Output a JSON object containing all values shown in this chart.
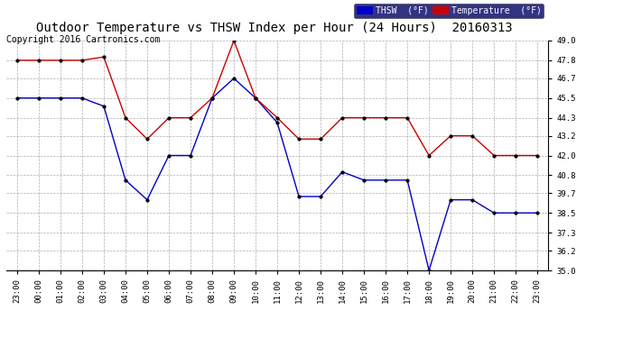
{
  "title": "Outdoor Temperature vs THSW Index per Hour (24 Hours)  20160313",
  "copyright": "Copyright 2016 Cartronics.com",
  "x_labels": [
    "23:00",
    "00:00",
    "01:00",
    "02:00",
    "03:00",
    "04:00",
    "05:00",
    "06:00",
    "07:00",
    "08:00",
    "09:00",
    "10:00",
    "11:00",
    "12:00",
    "13:00",
    "14:00",
    "15:00",
    "16:00",
    "17:00",
    "18:00",
    "19:00",
    "20:00",
    "21:00",
    "22:00",
    "23:00"
  ],
  "thsw_values": [
    45.5,
    45.5,
    45.5,
    45.5,
    45.0,
    40.5,
    39.3,
    42.0,
    42.0,
    45.5,
    46.7,
    45.5,
    44.0,
    39.5,
    39.5,
    41.0,
    40.5,
    40.5,
    40.5,
    35.0,
    39.3,
    39.3,
    38.5,
    38.5,
    38.5
  ],
  "temp_values": [
    47.8,
    47.8,
    47.8,
    47.8,
    48.0,
    44.3,
    43.0,
    44.3,
    44.3,
    45.5,
    49.0,
    45.5,
    44.3,
    43.0,
    43.0,
    44.3,
    44.3,
    44.3,
    44.3,
    42.0,
    43.2,
    43.2,
    42.0,
    42.0,
    42.0
  ],
  "thsw_color": "#0000cc",
  "temp_color": "#cc0000",
  "bg_color": "#ffffff",
  "plot_bg_color": "#ffffff",
  "grid_color": "#999999",
  "ylim": [
    35.0,
    49.0
  ],
  "yticks": [
    35.0,
    36.2,
    37.3,
    38.5,
    39.7,
    40.8,
    42.0,
    43.2,
    44.3,
    45.5,
    46.7,
    47.8,
    49.0
  ],
  "title_fontsize": 10,
  "copyright_fontsize": 7,
  "legend_thsw_label": "THSW  (°F)",
  "legend_temp_label": "Temperature  (°F)",
  "thsw_legend_bg": "#0000cc",
  "temp_legend_bg": "#cc0000"
}
